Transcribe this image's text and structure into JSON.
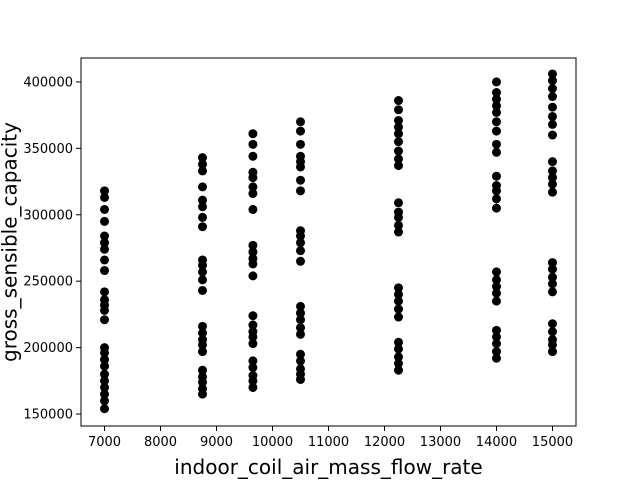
{
  "chart_data": {
    "type": "scatter",
    "title": "",
    "xlabel": "indoor_coil_air_mass_flow_rate",
    "ylabel": "gross_sensible_capacity",
    "xlim": [
      6580,
      15420
    ],
    "ylim": [
      141000,
      418000
    ],
    "xticks": [
      7000,
      8000,
      9000,
      10000,
      11000,
      12000,
      13000,
      14000,
      15000
    ],
    "yticks": [
      150000,
      200000,
      250000,
      300000,
      350000,
      400000
    ],
    "grid": false,
    "marker_color": "#000000",
    "series": [
      {
        "points": [
          [
            7000,
            318000
          ],
          [
            7000,
            313000
          ],
          [
            7000,
            304000
          ],
          [
            7000,
            295000
          ],
          [
            7000,
            284000
          ],
          [
            7000,
            279000
          ],
          [
            7000,
            274000
          ],
          [
            7000,
            266000
          ],
          [
            7000,
            258000
          ],
          [
            7000,
            242000
          ],
          [
            7000,
            236000
          ],
          [
            7000,
            232000
          ],
          [
            7000,
            228000
          ],
          [
            7000,
            221000
          ],
          [
            7000,
            200000
          ],
          [
            7000,
            196000
          ],
          [
            7000,
            191000
          ],
          [
            7000,
            186000
          ],
          [
            7000,
            180000
          ],
          [
            7000,
            175000
          ],
          [
            7000,
            170000
          ],
          [
            7000,
            165000
          ],
          [
            7000,
            160000
          ],
          [
            7000,
            154000
          ],
          [
            8750,
            343000
          ],
          [
            8750,
            338000
          ],
          [
            8750,
            333000
          ],
          [
            8750,
            321000
          ],
          [
            8750,
            311000
          ],
          [
            8750,
            306000
          ],
          [
            8750,
            298000
          ],
          [
            8750,
            291000
          ],
          [
            8750,
            266000
          ],
          [
            8750,
            262000
          ],
          [
            8750,
            257000
          ],
          [
            8750,
            251000
          ],
          [
            8750,
            243000
          ],
          [
            8750,
            216000
          ],
          [
            8750,
            211000
          ],
          [
            8750,
            206000
          ],
          [
            8750,
            202000
          ],
          [
            8750,
            197000
          ],
          [
            8750,
            183000
          ],
          [
            8750,
            178000
          ],
          [
            8750,
            174000
          ],
          [
            8750,
            169000
          ],
          [
            8750,
            165000
          ],
          [
            9650,
            361000
          ],
          [
            9650,
            353000
          ],
          [
            9650,
            344000
          ],
          [
            9650,
            332000
          ],
          [
            9650,
            328000
          ],
          [
            9650,
            321000
          ],
          [
            9650,
            316000
          ],
          [
            9650,
            304000
          ],
          [
            9650,
            277000
          ],
          [
            9650,
            272000
          ],
          [
            9650,
            267000
          ],
          [
            9650,
            263000
          ],
          [
            9650,
            254000
          ],
          [
            9650,
            224000
          ],
          [
            9650,
            217000
          ],
          [
            9650,
            212000
          ],
          [
            9650,
            208000
          ],
          [
            9650,
            203000
          ],
          [
            9650,
            190000
          ],
          [
            9650,
            185000
          ],
          [
            9650,
            179000
          ],
          [
            9650,
            175000
          ],
          [
            9650,
            170000
          ],
          [
            10500,
            370000
          ],
          [
            10500,
            363000
          ],
          [
            10500,
            353000
          ],
          [
            10500,
            344000
          ],
          [
            10500,
            340000
          ],
          [
            10500,
            336000
          ],
          [
            10500,
            326000
          ],
          [
            10500,
            318000
          ],
          [
            10500,
            288000
          ],
          [
            10500,
            284000
          ],
          [
            10500,
            279000
          ],
          [
            10500,
            273000
          ],
          [
            10500,
            265000
          ],
          [
            10500,
            231000
          ],
          [
            10500,
            226000
          ],
          [
            10500,
            221000
          ],
          [
            10500,
            215000
          ],
          [
            10500,
            210000
          ],
          [
            10500,
            195000
          ],
          [
            10500,
            190000
          ],
          [
            10500,
            184000
          ],
          [
            10500,
            180000
          ],
          [
            10500,
            176000
          ],
          [
            12250,
            386000
          ],
          [
            12250,
            379000
          ],
          [
            12250,
            371000
          ],
          [
            12250,
            366000
          ],
          [
            12250,
            361000
          ],
          [
            12250,
            355000
          ],
          [
            12250,
            348000
          ],
          [
            12250,
            342000
          ],
          [
            12250,
            337000
          ],
          [
            12250,
            309000
          ],
          [
            12250,
            302000
          ],
          [
            12250,
            298000
          ],
          [
            12250,
            292000
          ],
          [
            12250,
            287000
          ],
          [
            12250,
            245000
          ],
          [
            12250,
            240000
          ],
          [
            12250,
            235000
          ],
          [
            12250,
            229000
          ],
          [
            12250,
            223000
          ],
          [
            12250,
            204000
          ],
          [
            12250,
            199000
          ],
          [
            12250,
            193000
          ],
          [
            12250,
            188000
          ],
          [
            12250,
            183000
          ],
          [
            14000,
            400000
          ],
          [
            14000,
            392000
          ],
          [
            14000,
            387000
          ],
          [
            14000,
            382000
          ],
          [
            14000,
            377000
          ],
          [
            14000,
            370000
          ],
          [
            14000,
            363000
          ],
          [
            14000,
            353000
          ],
          [
            14000,
            347000
          ],
          [
            14000,
            329000
          ],
          [
            14000,
            322000
          ],
          [
            14000,
            318000
          ],
          [
            14000,
            312000
          ],
          [
            14000,
            305000
          ],
          [
            14000,
            257000
          ],
          [
            14000,
            251000
          ],
          [
            14000,
            246000
          ],
          [
            14000,
            241000
          ],
          [
            14000,
            235000
          ],
          [
            14000,
            213000
          ],
          [
            14000,
            208000
          ],
          [
            14000,
            203000
          ],
          [
            14000,
            197000
          ],
          [
            14000,
            192000
          ],
          [
            15000,
            406000
          ],
          [
            15000,
            401000
          ],
          [
            15000,
            395000
          ],
          [
            15000,
            389000
          ],
          [
            15000,
            381000
          ],
          [
            15000,
            374000
          ],
          [
            15000,
            368000
          ],
          [
            15000,
            360000
          ],
          [
            15000,
            340000
          ],
          [
            15000,
            333000
          ],
          [
            15000,
            328000
          ],
          [
            15000,
            323000
          ],
          [
            15000,
            317000
          ],
          [
            15000,
            264000
          ],
          [
            15000,
            259000
          ],
          [
            15000,
            253000
          ],
          [
            15000,
            248000
          ],
          [
            15000,
            242000
          ],
          [
            15000,
            218000
          ],
          [
            15000,
            212000
          ],
          [
            15000,
            206000
          ],
          [
            15000,
            202000
          ],
          [
            15000,
            197000
          ]
        ]
      }
    ]
  }
}
